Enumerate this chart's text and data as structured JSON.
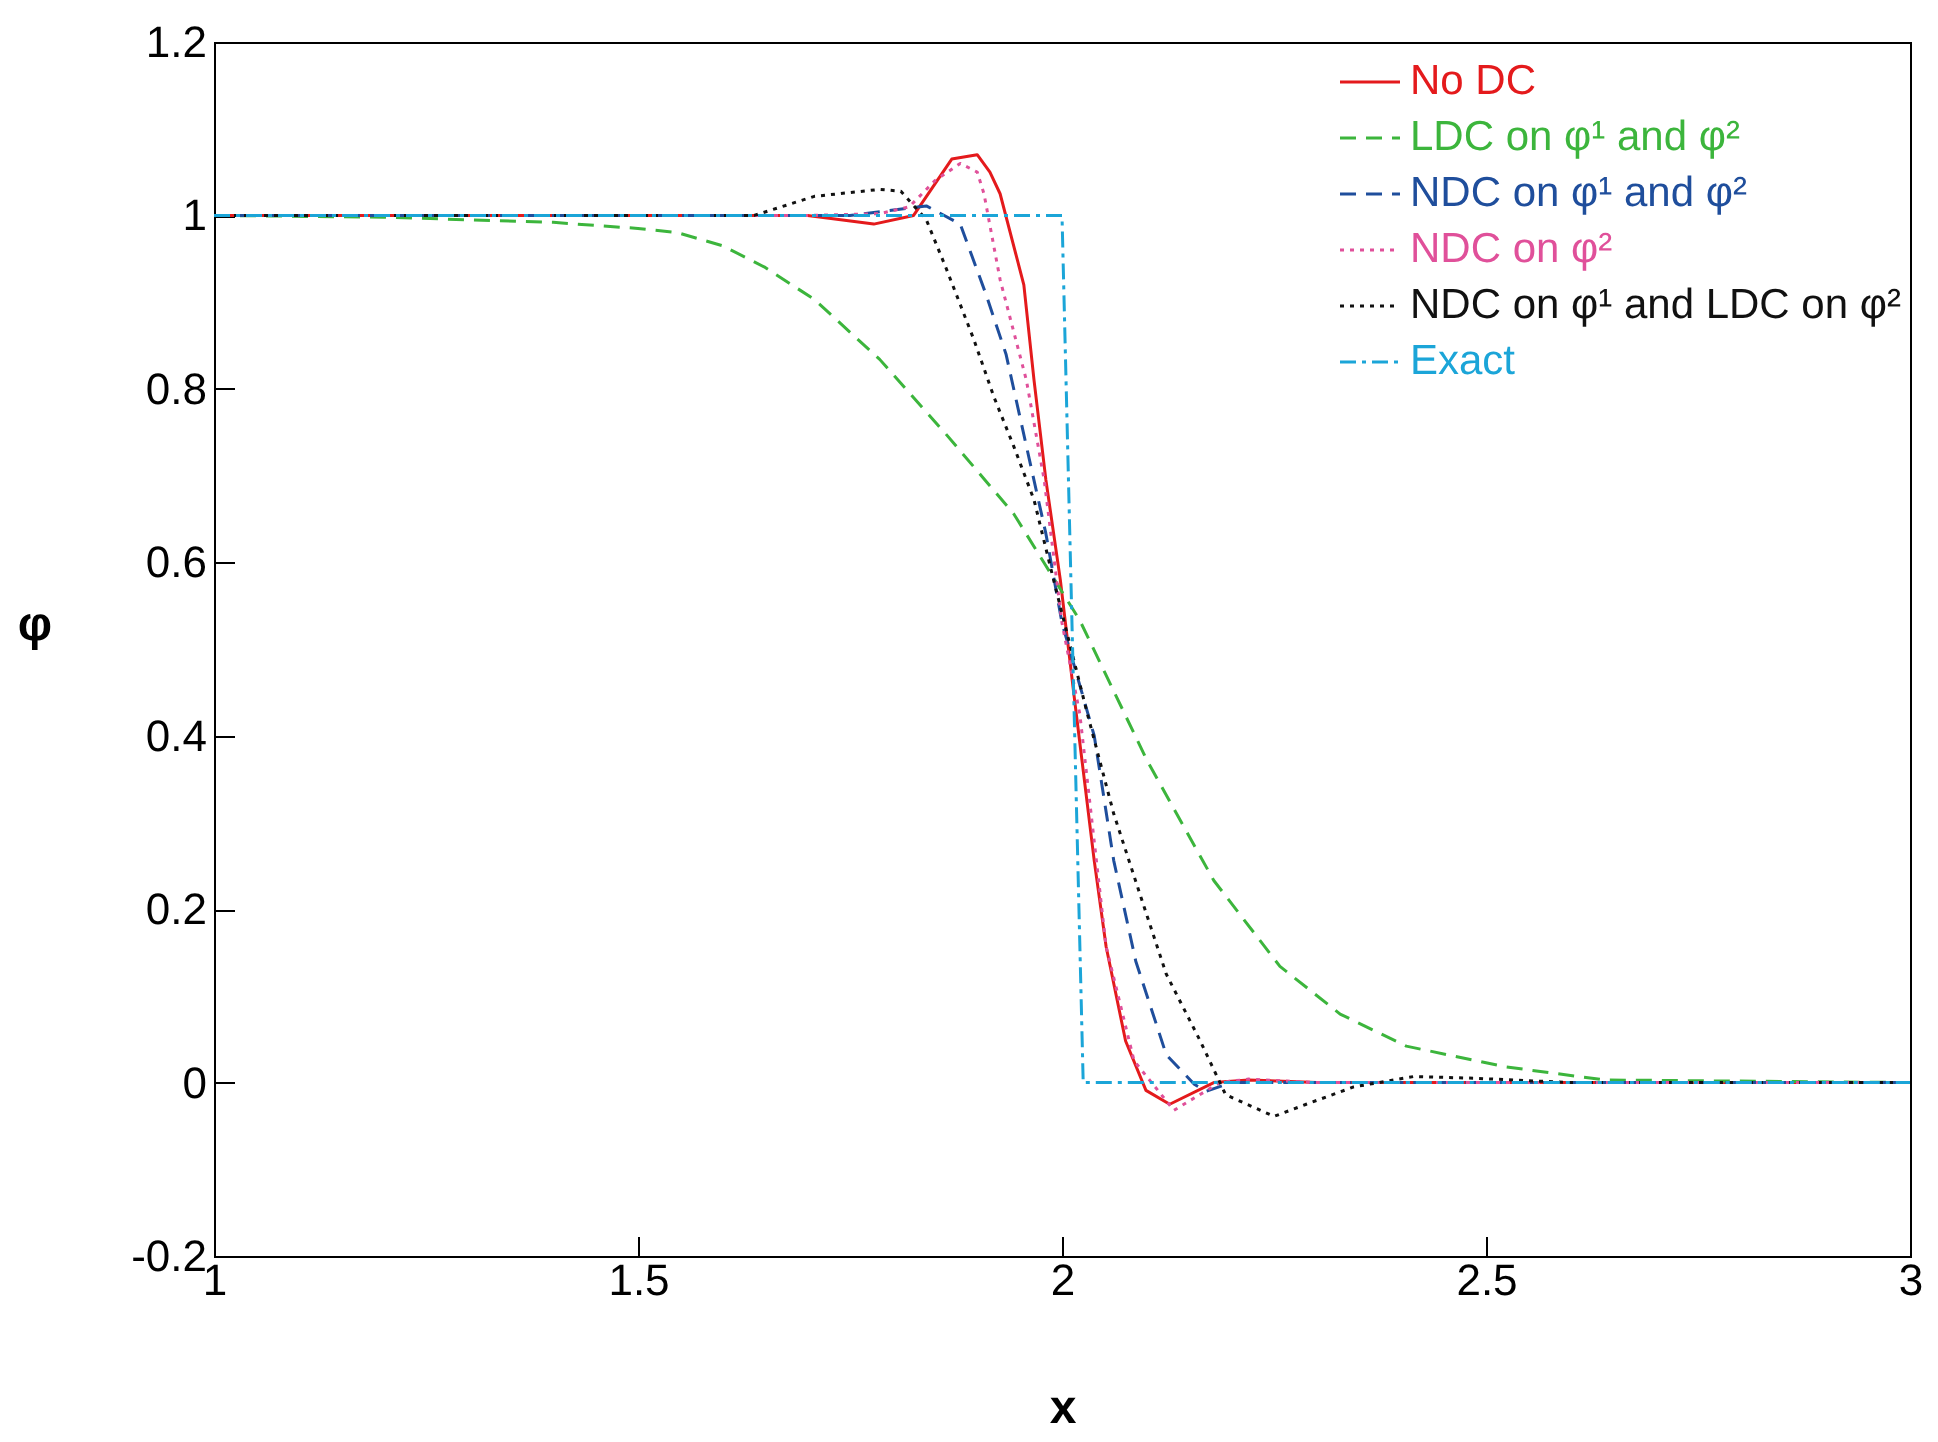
{
  "chart_data": {
    "type": "line",
    "xlabel": "x",
    "ylabel": "φ",
    "xlim": [
      1,
      3
    ],
    "ylim": [
      -0.2,
      1.2
    ],
    "xticks": [
      1,
      1.5,
      2,
      2.5,
      3
    ],
    "yticks": [
      -0.2,
      0,
      0.2,
      0.4,
      0.6,
      0.8,
      1,
      1.2
    ],
    "grid": false,
    "legend": "top right",
    "marker": "none",
    "series": [
      {
        "name": "No DC",
        "color": "#e41a1c",
        "line_style": "solid",
        "x": [
          1,
          1.7,
          1.778,
          1.825,
          1.87,
          1.9,
          1.915,
          1.927,
          1.955,
          1.967,
          1.981,
          1.998,
          2.014,
          2.038,
          2.052,
          2.075,
          2.099,
          2.127,
          2.179,
          2.22,
          2.3,
          3
        ],
        "values": [
          1,
          1,
          0.99,
          1,
          1.065,
          1.07,
          1.05,
          1.025,
          0.92,
          0.81,
          0.695,
          0.58,
          0.448,
          0.256,
          0.157,
          0.048,
          -0.009,
          -0.025,
          0,
          0.003,
          0,
          0
        ]
      },
      {
        "name": "LDC on φ¹ and φ²",
        "color": "#3cb53c",
        "line_style": "dashed",
        "x": [
          1,
          1.2,
          1.3,
          1.4,
          1.5,
          1.547,
          1.6,
          1.65,
          1.708,
          1.785,
          1.863,
          1.943,
          1.981,
          2.021,
          2.1,
          2.179,
          2.257,
          2.328,
          2.406,
          2.524,
          2.64,
          3
        ],
        "values": [
          1,
          0.998,
          0.995,
          0.992,
          0.985,
          0.98,
          0.965,
          0.94,
          0.903,
          0.834,
          0.748,
          0.656,
          0.596,
          0.533,
          0.372,
          0.233,
          0.134,
          0.079,
          0.042,
          0.018,
          0.003,
          0
        ]
      },
      {
        "name": "NDC on φ¹ and φ²",
        "color": "#1f4e9c",
        "line_style": "dashed",
        "x": [
          1,
          1.75,
          1.84,
          1.88,
          1.91,
          1.934,
          1.958,
          1.981,
          2.0,
          2.038,
          2.061,
          2.087,
          2.123,
          2.156,
          2.17,
          2.2,
          3
        ],
        "values": [
          1,
          1,
          1.011,
          0.99,
          0.91,
          0.84,
          0.734,
          0.633,
          0.53,
          0.4,
          0.256,
          0.14,
          0.032,
          -0.002,
          -0.01,
          0,
          0
        ]
      },
      {
        "name": "NDC on φ²",
        "color": "#e0509a",
        "line_style": "dotted",
        "x": [
          1,
          1.7,
          1.785,
          1.82,
          1.85,
          1.88,
          1.9,
          1.908,
          1.927,
          1.958,
          1.979,
          2.0,
          2.021,
          2.052,
          2.085,
          2.132,
          2.186,
          2.22,
          2.3,
          3
        ],
        "values": [
          1,
          1,
          1.002,
          1.01,
          1.04,
          1.06,
          1.05,
          1.025,
          0.926,
          0.81,
          0.695,
          0.53,
          0.425,
          0.157,
          0.025,
          -0.032,
          0,
          0.004,
          0,
          0
        ]
      },
      {
        "name": "NDC on φ¹ and LDC on φ²",
        "color": "#111111",
        "line_style": "dotted",
        "x": [
          1,
          1.637,
          1.708,
          1.785,
          1.81,
          1.84,
          1.863,
          1.896,
          1.92,
          1.943,
          1.967,
          1.99,
          2.03,
          2.061,
          2.092,
          2.123,
          2.163,
          2.193,
          2.25,
          2.288,
          2.344,
          2.415,
          2.486,
          2.6,
          3
        ],
        "values": [
          1,
          1,
          1.022,
          1.03,
          1.028,
          0.995,
          0.94,
          0.857,
          0.79,
          0.734,
          0.672,
          0.58,
          0.425,
          0.31,
          0.217,
          0.125,
          0.048,
          -0.014,
          -0.039,
          -0.025,
          -0.005,
          0.007,
          0.005,
          0,
          0
        ]
      },
      {
        "name": "Exact",
        "color": "#1ba5d8",
        "line_style": "dashdot",
        "x": [
          1,
          2.0,
          2.025,
          3
        ],
        "values": [
          1,
          1,
          0,
          0
        ]
      }
    ]
  }
}
